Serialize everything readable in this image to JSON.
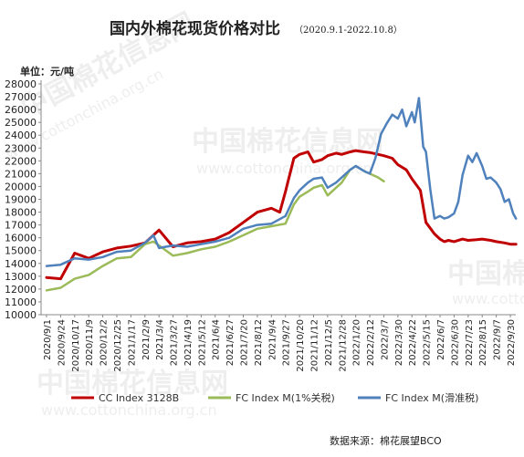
{
  "header": {
    "title": "国内外棉花现货价格对比",
    "period": "（2020.9.1-2022.10.8）"
  },
  "unit_label": "单位：元/吨",
  "source_label": "数据来源：棉花展望BCO",
  "watermark": {
    "text": "中国棉花信息网",
    "url": "www.cottonchina.org.cn"
  },
  "chart_data": {
    "type": "line",
    "ylim": [
      10000,
      28000
    ],
    "ystep": 1000,
    "grid": false,
    "legend_position": "bottom",
    "x_tick_labels": [
      "2020/9/1",
      "2020/9/24",
      "2020/10/17",
      "2020/11/9",
      "2020/12/2",
      "2020/12/25",
      "2021/1/17",
      "2021/2/9",
      "2021/3/4",
      "2021/3/27",
      "2021/4/19",
      "2021/5/12",
      "2021/6/4",
      "2021/6/27",
      "2021/7/20",
      "2021/8/12",
      "2021/9/4",
      "2021/9/27",
      "2021/10/20",
      "2021/11/12",
      "2021/12/5",
      "2021/12/28",
      "2022/1/20",
      "2022/2/12",
      "2022/3/7",
      "2022/3/30",
      "2022/4/22",
      "2022/5/15",
      "2022/6/7",
      "2022/6/30",
      "2022/7/23",
      "2022/8/15",
      "2022/9/7",
      "2022/9/30"
    ],
    "series": [
      {
        "name": "CC Index 3128B",
        "color": "#c00000",
        "x": [
          0,
          1,
          2,
          3,
          4,
          5,
          6,
          7,
          8,
          9,
          10,
          11,
          12,
          13,
          14,
          15,
          16,
          16.6,
          17,
          17.6,
          18,
          18.6,
          19,
          19.6,
          20,
          20.6,
          21,
          21.6,
          22,
          22.6,
          23,
          23.6,
          24,
          24.6,
          25,
          25.6,
          26,
          26.6,
          27,
          27.6,
          28,
          28.3,
          28.6,
          29,
          29.6,
          30,
          30.6,
          31,
          31.6,
          32,
          32.6,
          33,
          33.4
        ],
        "y": [
          12900,
          12800,
          14800,
          14400,
          14900,
          15200,
          15350,
          15600,
          16600,
          15300,
          15600,
          15700,
          15900,
          16400,
          17200,
          18000,
          18300,
          18000,
          19600,
          22200,
          22500,
          22700,
          21900,
          22100,
          22400,
          22600,
          22500,
          22700,
          22800,
          22700,
          22650,
          22500,
          22400,
          22200,
          21700,
          21300,
          20600,
          19700,
          17200,
          16300,
          15900,
          15700,
          15800,
          15700,
          15900,
          15800,
          15850,
          15900,
          15800,
          15700,
          15600,
          15500,
          15500
        ]
      },
      {
        "name": "FC Index M(1%关税)",
        "color": "#9bbb59",
        "x": [
          0,
          1,
          2,
          3,
          4,
          5,
          6,
          7,
          7.6,
          8,
          9,
          10,
          11,
          12,
          13,
          14,
          15,
          16,
          17,
          17.6,
          18,
          18.6,
          19,
          19.6,
          20,
          20.6,
          21,
          21.6,
          22,
          22.6,
          23,
          23.6,
          24
        ],
        "y": [
          11900,
          12100,
          12800,
          13100,
          13800,
          14400,
          14500,
          15500,
          15700,
          15400,
          14600,
          14800,
          15100,
          15300,
          15700,
          16200,
          16700,
          16900,
          17100,
          18600,
          19200,
          19600,
          19900,
          20100,
          19300,
          19900,
          20300,
          21300,
          21600,
          21200,
          21000,
          20700,
          20400
        ]
      },
      {
        "name": "FC Index M(滑准税)",
        "color": "#4f81bd",
        "x": [
          0,
          1,
          2,
          3,
          4,
          5,
          6,
          7,
          7.6,
          8,
          9,
          10,
          11,
          12,
          13,
          14,
          15,
          16,
          17,
          17.6,
          18,
          18.6,
          19,
          19.6,
          20,
          20.6,
          21,
          21.6,
          22,
          22.6,
          23,
          23.4,
          23.8,
          24.2,
          24.6,
          25,
          25.3,
          25.6,
          26,
          26.2,
          26.5,
          26.8,
          27,
          27.3,
          27.6,
          28,
          28.3,
          28.6,
          29,
          29.3,
          29.6,
          30,
          30.3,
          30.6,
          31,
          31.3,
          31.6,
          32,
          32.3,
          32.6,
          32.9,
          33.2,
          33.4
        ],
        "y": [
          13800,
          13900,
          14400,
          14300,
          14500,
          14900,
          15000,
          15600,
          16200,
          15200,
          15400,
          15300,
          15500,
          15700,
          16000,
          16700,
          17000,
          17100,
          17700,
          19100,
          19700,
          20300,
          20600,
          20700,
          19900,
          20300,
          20700,
          21300,
          21600,
          21200,
          21000,
          22200,
          24100,
          24900,
          25600,
          25300,
          26000,
          24700,
          25800,
          25000,
          26900,
          23100,
          22700,
          19800,
          17500,
          17700,
          17500,
          17600,
          17900,
          18800,
          20900,
          22400,
          21900,
          22600,
          21600,
          20600,
          20700,
          20300,
          19800,
          18800,
          19000,
          17900,
          17500
        ]
      }
    ]
  }
}
